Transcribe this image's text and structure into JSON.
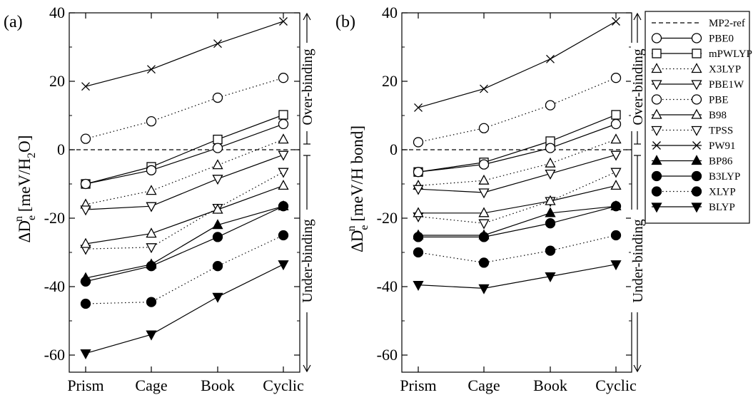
{
  "figure": {
    "legend_placement": "right",
    "legend": [
      {
        "name": "MP2-ref",
        "marker": "none",
        "filled": false,
        "dash": "dashed"
      },
      {
        "name": "PBE0",
        "marker": "circle",
        "filled": false,
        "dash": "solid"
      },
      {
        "name": "mPWLYP",
        "marker": "square",
        "filled": false,
        "dash": "solid"
      },
      {
        "name": "X3LYP",
        "marker": "triangle-up",
        "filled": false,
        "dash": "dotted"
      },
      {
        "name": "PBE1W",
        "marker": "triangle-down",
        "filled": false,
        "dash": "solid"
      },
      {
        "name": "PBE",
        "marker": "circle",
        "filled": false,
        "dash": "dotted"
      },
      {
        "name": "B98",
        "marker": "triangle-up",
        "filled": false,
        "dash": "solid"
      },
      {
        "name": "TPSS",
        "marker": "triangle-down",
        "filled": false,
        "dash": "dotted"
      },
      {
        "name": "PW91",
        "marker": "x",
        "filled": false,
        "dash": "solid"
      },
      {
        "name": "BP86",
        "marker": "triangle-up",
        "filled": true,
        "dash": "solid"
      },
      {
        "name": "B3LYP",
        "marker": "circle",
        "filled": true,
        "dash": "solid"
      },
      {
        "name": "XLYP",
        "marker": "circle",
        "filled": true,
        "dash": "dotted"
      },
      {
        "name": "BLYP",
        "marker": "triangle-down",
        "filled": true,
        "dash": "solid"
      }
    ]
  },
  "chart_data": [
    {
      "type": "line",
      "panel_label": "(a)",
      "ylabel_main": "ΔD",
      "ylabel_sub": "e",
      "ylabel_sup": "n",
      "ylabel_rest": " [meV/H",
      "ylabel_sub2": "2",
      "ylabel_end": "O]",
      "categories": [
        "Prism",
        "Cage",
        "Book",
        "Cyclic"
      ],
      "ylim": [
        -65,
        40
      ],
      "yticks": [
        40,
        20,
        0,
        -20,
        -40,
        -60
      ],
      "ytick_labels": [
        "40",
        "20",
        "0",
        "-20",
        "-40",
        "-60"
      ],
      "grid": false,
      "reference_line": 0,
      "side_labels": {
        "top": "Over-binding",
        "bottom": "Under-binding"
      },
      "series": [
        {
          "name": "PW91",
          "values": [
            18.5,
            23.5,
            31,
            37.5
          ]
        },
        {
          "name": "PBE",
          "values": [
            3.2,
            8.3,
            15.2,
            21
          ]
        },
        {
          "name": "mPWLYP",
          "values": [
            -10,
            -5,
            3,
            10.2
          ]
        },
        {
          "name": "PBE0",
          "values": [
            -10,
            -6,
            0.5,
            7.5
          ]
        },
        {
          "name": "X3LYP",
          "values": [
            -16,
            -12,
            -4.5,
            3
          ]
        },
        {
          "name": "PBE1W",
          "values": [
            -17.5,
            -16.5,
            -8.5,
            -1.5
          ]
        },
        {
          "name": "TPSS",
          "values": [
            -29,
            -28.5,
            -17,
            -6.5
          ]
        },
        {
          "name": "B98",
          "values": [
            -27.5,
            -24.5,
            -17.5,
            -10.5
          ]
        },
        {
          "name": "BP86",
          "values": [
            -37.5,
            -33.5,
            -22,
            -16.5
          ]
        },
        {
          "name": "B3LYP",
          "values": [
            -38.5,
            -34,
            -25.5,
            -16.5
          ]
        },
        {
          "name": "XLYP",
          "values": [
            -45,
            -44.5,
            -34,
            -25
          ]
        },
        {
          "name": "BLYP",
          "values": [
            -59.5,
            -54,
            -43,
            -33.5
          ]
        }
      ]
    },
    {
      "type": "line",
      "panel_label": "(b)",
      "ylabel_main": "ΔD",
      "ylabel_sub": "e",
      "ylabel_sup": "n",
      "ylabel_rest": " [meV/H bond]",
      "ylabel_sub2": "",
      "ylabel_end": "",
      "categories": [
        "Prism",
        "Cage",
        "Book",
        "Cyclic"
      ],
      "ylim": [
        -65,
        40
      ],
      "yticks": [
        40,
        20,
        0,
        -20,
        -40,
        -60
      ],
      "ytick_labels": [
        "40",
        "20",
        "0",
        "-20",
        "-40",
        "-60"
      ],
      "grid": false,
      "reference_line": 0,
      "side_labels": {
        "top": "Over-binding",
        "bottom": "Under-binding"
      },
      "series": [
        {
          "name": "PW91",
          "values": [
            12.3,
            17.8,
            26.5,
            37.5
          ]
        },
        {
          "name": "PBE",
          "values": [
            2.2,
            6.3,
            13,
            21
          ]
        },
        {
          "name": "mPWLYP",
          "values": [
            -6.5,
            -3.7,
            2.5,
            10.2
          ]
        },
        {
          "name": "PBE0",
          "values": [
            -6.5,
            -4.3,
            0.5,
            7.5
          ]
        },
        {
          "name": "X3LYP",
          "values": [
            -10.5,
            -9,
            -4,
            3
          ]
        },
        {
          "name": "PBE1W",
          "values": [
            -11.5,
            -12.5,
            -7,
            -1.5
          ]
        },
        {
          "name": "TPSS",
          "values": [
            -19.5,
            -21.5,
            -15,
            -6.5
          ]
        },
        {
          "name": "B98",
          "values": [
            -18.5,
            -18.5,
            -15,
            -10.5
          ]
        },
        {
          "name": "BP86",
          "values": [
            -25,
            -25,
            -18.5,
            -16.5
          ]
        },
        {
          "name": "B3LYP",
          "values": [
            -25.5,
            -25.5,
            -21.5,
            -16.5
          ]
        },
        {
          "name": "XLYP",
          "values": [
            -30,
            -33,
            -29.5,
            -25
          ]
        },
        {
          "name": "BLYP",
          "values": [
            -39.5,
            -40.5,
            -37,
            -33.5
          ]
        }
      ]
    }
  ]
}
